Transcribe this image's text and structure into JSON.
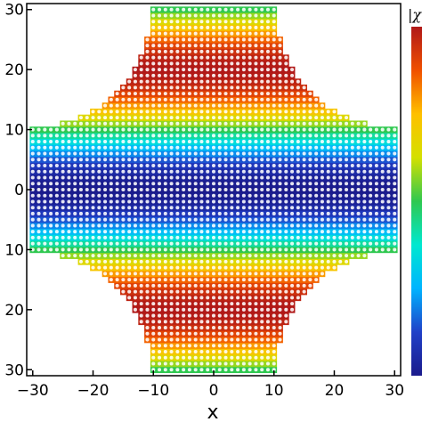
{
  "chart_data": {
    "type": "heatmap",
    "title": "",
    "xlabel": "x",
    "ylabel": "",
    "colorbar_label": "|χ",
    "xlim": [
      -31,
      31
    ],
    "ylim": [
      -31,
      31
    ],
    "x_ticks": [
      -30,
      -20,
      -10,
      0,
      10,
      20,
      30
    ],
    "x_tick_labels": [
      "−30",
      "−20",
      "−10",
      "0",
      "10",
      "20",
      "30"
    ],
    "y_ticks": [
      -30,
      -20,
      -10,
      0,
      10,
      20,
      30
    ],
    "y_tick_labels": [
      "30",
      "20",
      "10",
      "0",
      "10",
      "20",
      "30"
    ],
    "lattice": {
      "marker": "white-dots",
      "spacing": 1,
      "outer_half_width": 30,
      "corner_notch_radius": 19.5,
      "corner_notch_centers": [
        [
          -30,
          30
        ],
        [
          30,
          30
        ],
        [
          -30,
          -30
        ],
        [
          30,
          -30
        ]
      ],
      "top_bottom_half_width": 12,
      "left_right_half_height": 12
    },
    "color_function": "stripes along y: color index = 0.5 - 0.5*cos(pi*y/20)",
    "colormap": [
      "#1b1b8c",
      "#2040c8",
      "#00b4ff",
      "#00e8d0",
      "#2fc850",
      "#d4e000",
      "#ffc000",
      "#f05000",
      "#b01818"
    ],
    "grid": false,
    "legend": "colorbar-right"
  }
}
